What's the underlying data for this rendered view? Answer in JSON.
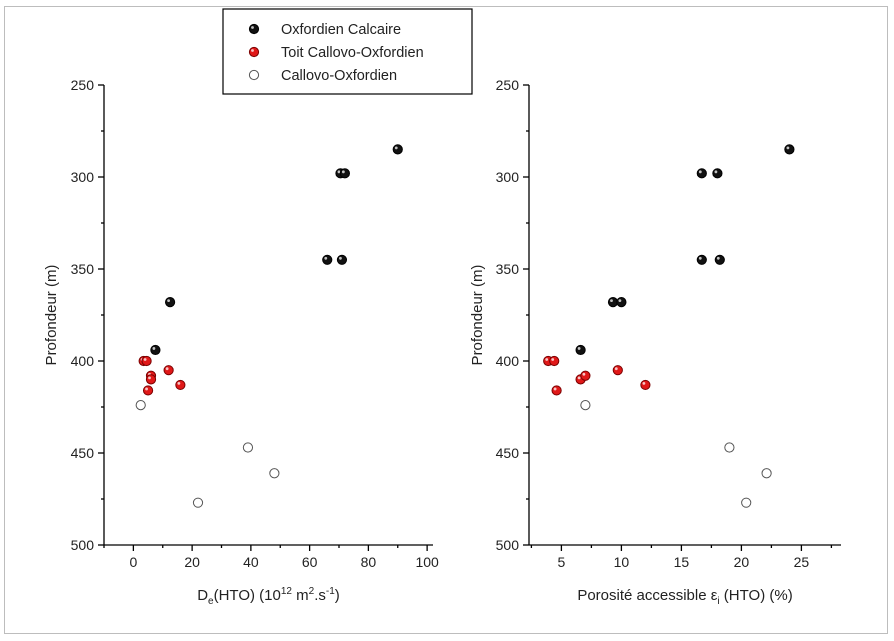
{
  "legend": {
    "entries": [
      {
        "label": "Oxfordien Calcaire",
        "color": "#111111",
        "style": "filled"
      },
      {
        "label": "Toit Callovo-Oxfordien",
        "color": "#e01818",
        "style": "filled"
      },
      {
        "label": "Callovo-Oxfordien",
        "color": "#ffffff",
        "style": "open"
      }
    ]
  },
  "chart_data": [
    {
      "type": "scatter",
      "xlabel_main": "D",
      "xlabel_sub": "e",
      "xlabel_mid": "(HTO) (10",
      "xlabel_sup": "12",
      "xlabel_mid2": " m",
      "xlabel_sup2": "2",
      "xlabel_end": ".s",
      "xlabel_sup3": "-1",
      "xlabel_close": ")",
      "ylabel": "Profondeur (m)",
      "xlim": [
        -10,
        102
      ],
      "ylim": [
        250,
        500
      ],
      "y_inverted": true,
      "xticks": [
        0,
        20,
        40,
        60,
        80,
        100
      ],
      "yticks": [
        250,
        300,
        350,
        400,
        450,
        500
      ],
      "series": [
        {
          "name": "Oxfordien Calcaire",
          "points": [
            [
              90,
              285
            ],
            [
              70.5,
              298
            ],
            [
              72,
              298
            ],
            [
              66,
              345
            ],
            [
              71,
              345
            ],
            [
              12.5,
              368
            ],
            [
              7.5,
              394
            ]
          ]
        },
        {
          "name": "Toit Callovo-Oxfordien",
          "points": [
            [
              3.5,
              400
            ],
            [
              4.5,
              400
            ],
            [
              6,
              408
            ],
            [
              6,
              410
            ],
            [
              12,
              405
            ],
            [
              16,
              413
            ],
            [
              5,
              416
            ]
          ]
        },
        {
          "name": "Callovo-Oxfordien",
          "points": [
            [
              2.5,
              424
            ],
            [
              39,
              447
            ],
            [
              48,
              461
            ],
            [
              22,
              477
            ]
          ]
        }
      ]
    },
    {
      "type": "scatter",
      "xlabel_main": "Porosité accessible ε",
      "xlabel_sub": "i",
      "xlabel_end": " (HTO) (%)",
      "ylabel": "Profondeur (m)",
      "xlim": [
        2.3,
        28.3
      ],
      "ylim": [
        250,
        500
      ],
      "y_inverted": true,
      "xticks": [
        5,
        10,
        15,
        20,
        25
      ],
      "yticks": [
        250,
        300,
        350,
        400,
        450,
        500
      ],
      "series": [
        {
          "name": "Oxfordien Calcaire",
          "points": [
            [
              24,
              285
            ],
            [
              16.7,
              298
            ],
            [
              18,
              298
            ],
            [
              16.7,
              345
            ],
            [
              18.2,
              345
            ],
            [
              9.3,
              368
            ],
            [
              10,
              368
            ],
            [
              6.6,
              394
            ]
          ]
        },
        {
          "name": "Toit Callovo-Oxfordien",
          "points": [
            [
              3.9,
              400
            ],
            [
              4.4,
              400
            ],
            [
              6.6,
              410
            ],
            [
              7,
              408
            ],
            [
              9.7,
              405
            ],
            [
              12,
              413
            ],
            [
              4.6,
              416
            ]
          ]
        },
        {
          "name": "Callovo-Oxfordien",
          "points": [
            [
              7,
              424
            ],
            [
              19,
              447
            ],
            [
              22.1,
              461
            ],
            [
              20.4,
              477
            ]
          ]
        }
      ]
    }
  ]
}
